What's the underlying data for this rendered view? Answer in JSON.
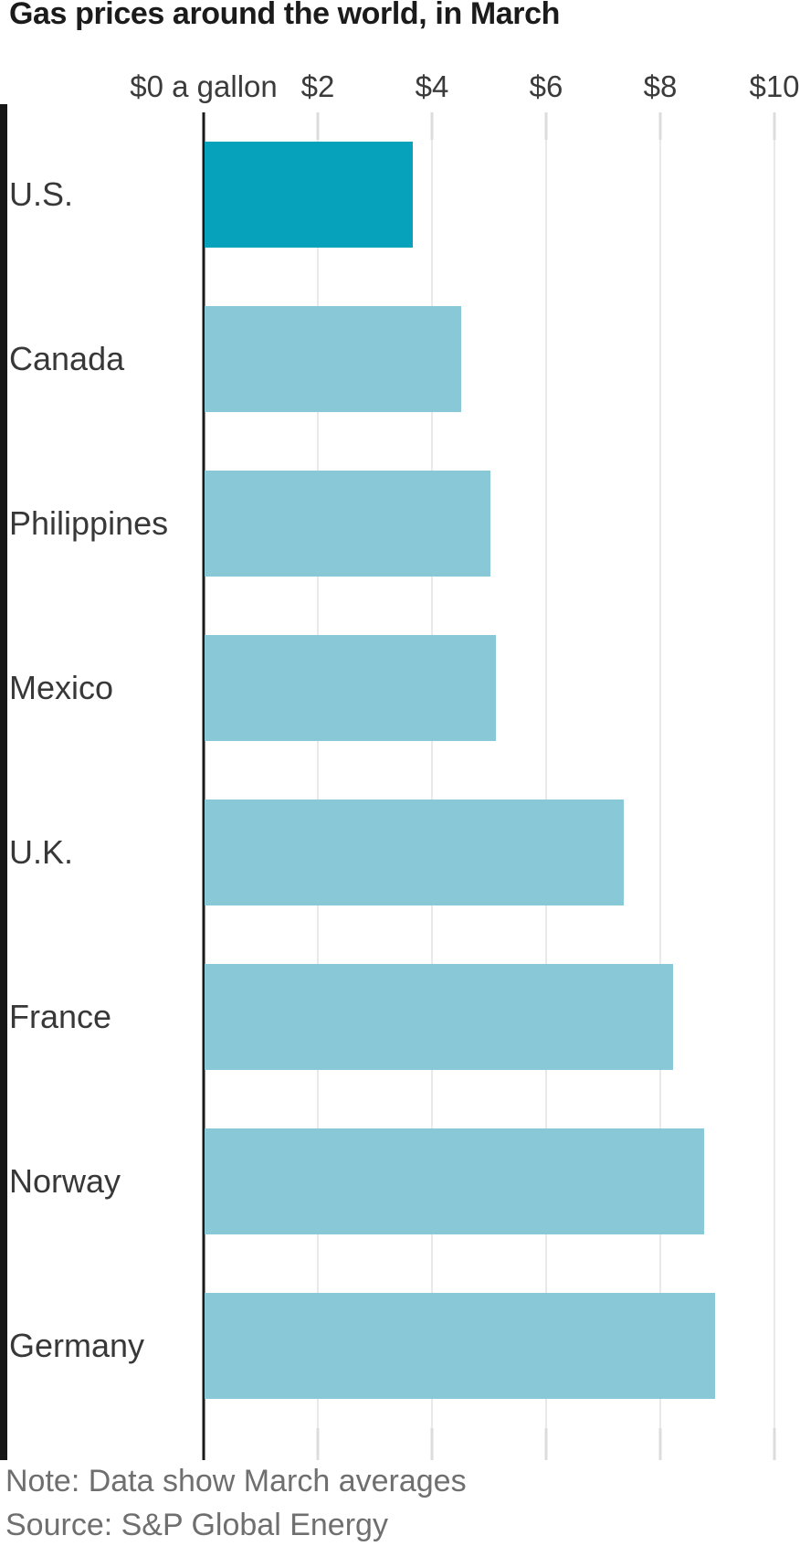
{
  "title": "Gas prices around the world, in March",
  "chart_data": {
    "type": "bar",
    "orientation": "horizontal",
    "unit": "$ per gallon",
    "categories": [
      "U.S.",
      "Canada",
      "Philippines",
      "Mexico",
      "U.K.",
      "France",
      "Norway",
      "Germany"
    ],
    "values": [
      3.65,
      4.5,
      5.0,
      5.1,
      7.35,
      8.2,
      8.75,
      8.95
    ],
    "highlight_index": 0,
    "x_ticks": [
      {
        "value": 0,
        "label": "$0 a gallon"
      },
      {
        "value": 2,
        "label": "$2"
      },
      {
        "value": 4,
        "label": "$4"
      },
      {
        "value": 6,
        "label": "$6"
      },
      {
        "value": 8,
        "label": "$8"
      },
      {
        "value": 10,
        "label": "$10"
      }
    ],
    "xlim": [
      0,
      10
    ],
    "grid": true,
    "colors": {
      "highlight": "#06a2bc",
      "default": "#89c8d7",
      "axis": "#1a1a1a",
      "gridline": "#e9e9e9",
      "tick": "#dcdcdc"
    }
  },
  "footer": {
    "note": "Note: Data show March averages",
    "source": "Source: S&P Global Energy"
  }
}
